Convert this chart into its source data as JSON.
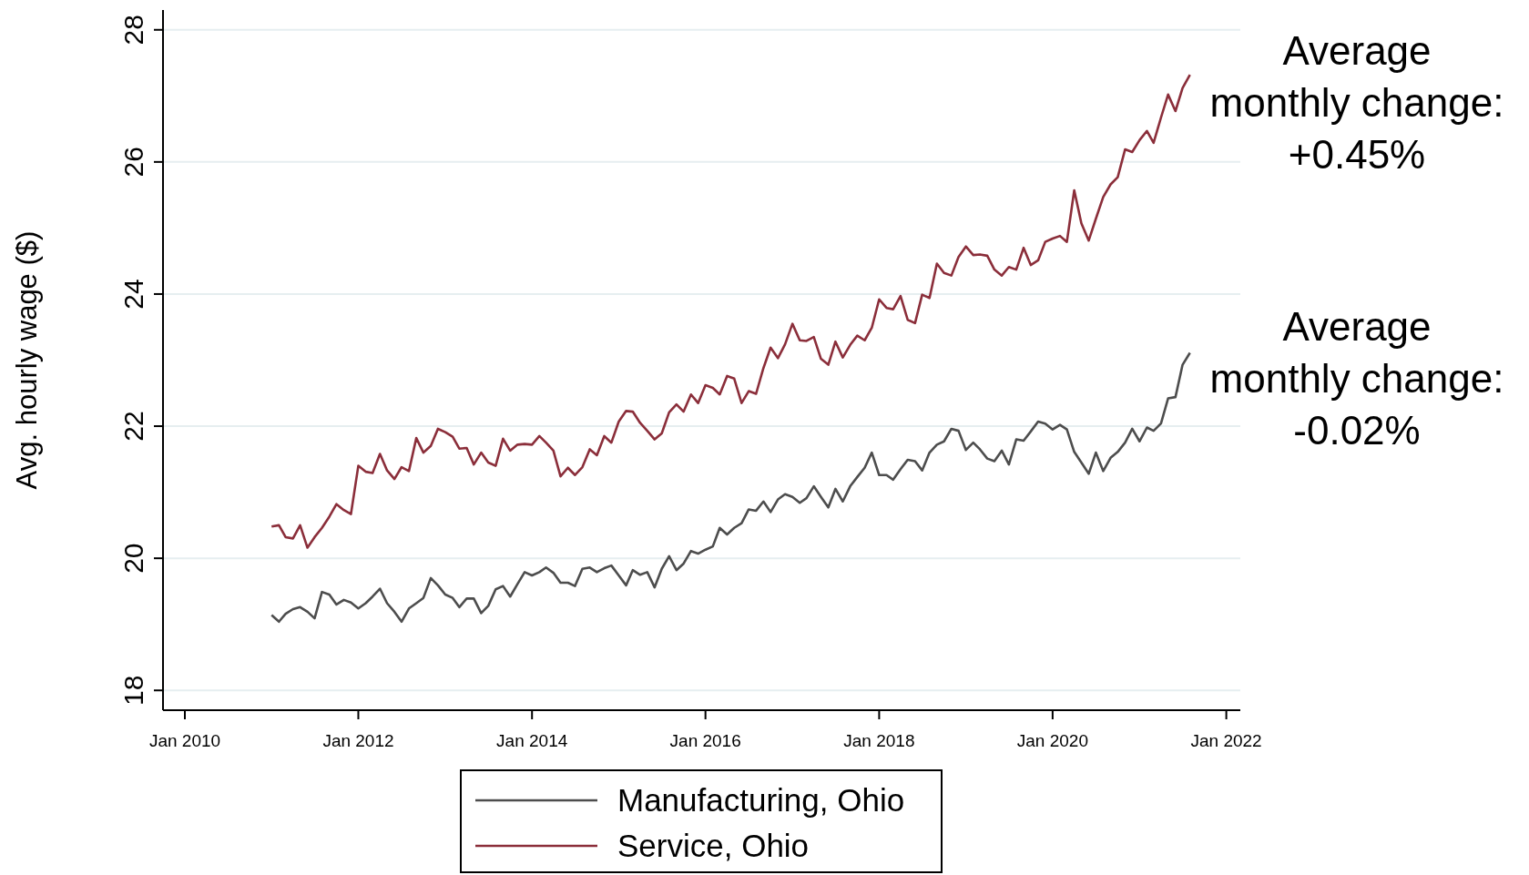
{
  "chart_data": {
    "type": "line",
    "ylabel": "Avg. hourly wage ($)",
    "x": [
      "2011-01",
      "2011-02",
      "2011-03",
      "2011-04",
      "2011-05",
      "2011-06",
      "2011-07",
      "2011-08",
      "2011-09",
      "2011-10",
      "2011-11",
      "2011-12",
      "2012-01",
      "2012-02",
      "2012-03",
      "2012-04",
      "2012-05",
      "2012-06",
      "2012-07",
      "2012-08",
      "2012-09",
      "2012-10",
      "2012-11",
      "2012-12",
      "2013-01",
      "2013-02",
      "2013-03",
      "2013-04",
      "2013-05",
      "2013-06",
      "2013-07",
      "2013-08",
      "2013-09",
      "2013-10",
      "2013-11",
      "2013-12",
      "2014-01",
      "2014-02",
      "2014-03",
      "2014-04",
      "2014-05",
      "2014-06",
      "2014-07",
      "2014-08",
      "2014-09",
      "2014-10",
      "2014-11",
      "2014-12",
      "2015-01",
      "2015-02",
      "2015-03",
      "2015-04",
      "2015-05",
      "2015-06",
      "2015-07",
      "2015-08",
      "2015-09",
      "2015-10",
      "2015-11",
      "2015-12",
      "2016-01",
      "2016-02",
      "2016-03",
      "2016-04",
      "2016-05",
      "2016-06",
      "2016-07",
      "2016-08",
      "2016-09",
      "2016-10",
      "2016-11",
      "2016-12",
      "2017-01",
      "2017-02",
      "2017-03",
      "2017-04",
      "2017-05",
      "2017-06",
      "2017-07",
      "2017-08",
      "2017-09",
      "2017-10",
      "2017-11",
      "2017-12",
      "2018-01",
      "2018-02",
      "2018-03",
      "2018-04",
      "2018-05",
      "2018-06",
      "2018-07",
      "2018-08",
      "2018-09",
      "2018-10",
      "2018-11",
      "2018-12",
      "2019-01",
      "2019-02",
      "2019-03",
      "2019-04",
      "2019-05",
      "2019-06",
      "2019-07",
      "2019-08",
      "2019-09",
      "2019-10",
      "2019-11",
      "2019-12",
      "2020-01",
      "2020-02",
      "2020-03",
      "2020-04",
      "2020-05",
      "2020-06",
      "2020-07",
      "2020-08",
      "2020-09",
      "2020-10",
      "2020-11",
      "2020-12",
      "2021-01",
      "2021-02",
      "2021-03",
      "2021-04",
      "2021-05",
      "2021-06",
      "2021-07",
      "2021-08"
    ],
    "series": [
      {
        "name": "Manufacturing, Ohio",
        "color": "#4d4d4d",
        "values": [
          19.14,
          19.04,
          19.16,
          19.23,
          19.26,
          19.19,
          19.09,
          19.49,
          19.45,
          19.3,
          19.37,
          19.33,
          19.24,
          19.32,
          19.42,
          19.54,
          19.32,
          19.19,
          19.04,
          19.24,
          19.32,
          19.4,
          19.7,
          19.59,
          19.45,
          19.4,
          19.26,
          19.39,
          19.39,
          19.17,
          19.28,
          19.53,
          19.58,
          19.42,
          19.61,
          19.79,
          19.74,
          19.79,
          19.86,
          19.78,
          19.63,
          19.63,
          19.58,
          19.84,
          19.86,
          19.79,
          19.85,
          19.89,
          19.74,
          19.59,
          19.82,
          19.75,
          19.79,
          19.56,
          19.84,
          20.03,
          19.82,
          19.92,
          20.11,
          20.07,
          20.13,
          20.18,
          20.46,
          20.36,
          20.46,
          20.53,
          20.74,
          20.72,
          20.86,
          20.7,
          20.89,
          20.97,
          20.93,
          20.84,
          20.91,
          21.09,
          20.93,
          20.77,
          21.05,
          20.86,
          21.09,
          21.23,
          21.37,
          21.6,
          21.26,
          21.26,
          21.19,
          21.35,
          21.49,
          21.47,
          21.33,
          21.6,
          21.72,
          21.77,
          21.96,
          21.93,
          21.64,
          21.75,
          21.65,
          21.51,
          21.47,
          21.63,
          21.42,
          21.8,
          21.78,
          21.92,
          22.07,
          22.04,
          21.95,
          22.02,
          21.95,
          21.61,
          21.45,
          21.28,
          21.6,
          21.32,
          21.52,
          21.61,
          21.75,
          21.96,
          21.77,
          21.98,
          21.93,
          22.04,
          22.42,
          22.44,
          22.93,
          23.11
        ]
      },
      {
        "name": "Service, Ohio",
        "color": "#8b2e3a",
        "values": [
          20.48,
          20.5,
          20.32,
          20.3,
          20.5,
          20.16,
          20.32,
          20.46,
          20.63,
          20.82,
          20.73,
          20.67,
          21.4,
          21.31,
          21.29,
          21.58,
          21.33,
          21.2,
          21.38,
          21.32,
          21.82,
          21.6,
          21.7,
          21.96,
          21.91,
          21.84,
          21.66,
          21.67,
          21.42,
          21.6,
          21.45,
          21.4,
          21.81,
          21.63,
          21.72,
          21.73,
          21.72,
          21.85,
          21.75,
          21.63,
          21.24,
          21.37,
          21.26,
          21.38,
          21.65,
          21.56,
          21.85,
          21.75,
          22.07,
          22.23,
          22.22,
          22.05,
          21.93,
          21.8,
          21.89,
          22.21,
          22.33,
          22.22,
          22.48,
          22.35,
          22.62,
          22.58,
          22.48,
          22.76,
          22.72,
          22.35,
          22.53,
          22.49,
          22.88,
          23.19,
          23.03,
          23.24,
          23.55,
          23.3,
          23.29,
          23.35,
          23.02,
          22.93,
          23.28,
          23.04,
          23.23,
          23.37,
          23.3,
          23.49,
          23.92,
          23.79,
          23.77,
          23.97,
          23.61,
          23.56,
          23.99,
          23.94,
          24.46,
          24.32,
          24.28,
          24.56,
          24.72,
          24.59,
          24.6,
          24.58,
          24.37,
          24.28,
          24.41,
          24.37,
          24.7,
          24.44,
          24.51,
          24.79,
          24.84,
          24.88,
          24.79,
          25.57,
          25.07,
          24.81,
          25.14,
          25.47,
          25.66,
          25.77,
          26.19,
          26.15,
          26.33,
          26.47,
          26.29,
          26.67,
          27.02,
          26.77,
          27.12,
          27.32
        ]
      }
    ],
    "xlim": [
      "2009-10",
      "2022-03"
    ],
    "xticks": [
      {
        "value": "2010-01",
        "label": "Jan 2010"
      },
      {
        "value": "2012-01",
        "label": "Jan 2012"
      },
      {
        "value": "2014-01",
        "label": "Jan 2014"
      },
      {
        "value": "2016-01",
        "label": "Jan 2016"
      },
      {
        "value": "2018-01",
        "label": "Jan 2018"
      },
      {
        "value": "2020-01",
        "label": "Jan 2020"
      },
      {
        "value": "2022-01",
        "label": "Jan 2022"
      }
    ],
    "ylim": [
      17.7,
      28.3
    ],
    "yticks": [
      18,
      20,
      22,
      24,
      26,
      28
    ],
    "grid": "y",
    "legend": "bottom",
    "annotations": [
      "Average\nmonthly change:\n+0.45%",
      "Average\nmonthly change:\n-0.02%"
    ]
  }
}
